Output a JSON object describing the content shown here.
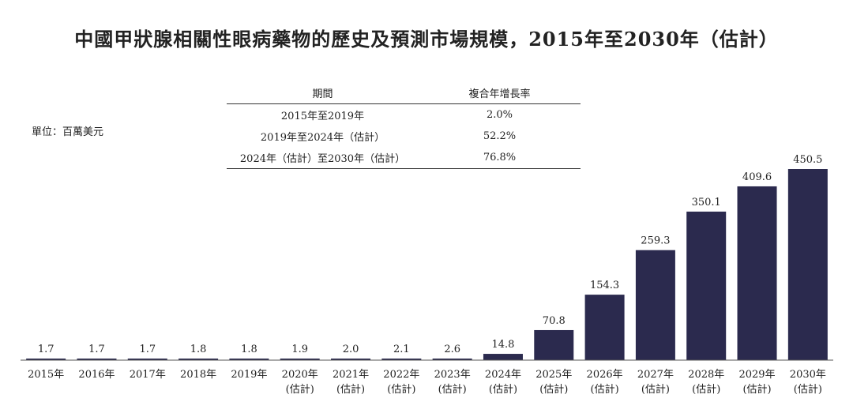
{
  "title": "中國甲狀腺相關性眼病藥物的歷史及預測市場規模，2015年至2030年（估計）",
  "unit": "單位：百萬美元",
  "cagr_table": {
    "headers": [
      "期間",
      "複合年增長率"
    ],
    "rows": [
      [
        "2015年至2019年",
        "2.0%"
      ],
      [
        "2019年至2024年（估計）",
        "52.2%"
      ],
      [
        "2024年（估計）至2030年（估計）",
        "76.8%"
      ]
    ]
  },
  "colors": {
    "bar": "#2b2a4e",
    "axis": "#555555"
  },
  "chart_data": {
    "type": "bar",
    "categories": [
      "2015年",
      "2016年",
      "2017年",
      "2018年",
      "2019年",
      "2020年",
      "2021年",
      "2022年",
      "2023年",
      "2024年",
      "2025年",
      "2026年",
      "2027年",
      "2028年",
      "2029年",
      "2030年"
    ],
    "category_sublabels": [
      "",
      "",
      "",
      "",
      "",
      "(估計)",
      "(估計)",
      "(估計)",
      "(估計)",
      "(估計)",
      "(估計)",
      "(估計)",
      "(估計)",
      "(估計)",
      "(估計)",
      "(估計)"
    ],
    "values": [
      1.7,
      1.7,
      1.7,
      1.8,
      1.8,
      1.9,
      2.0,
      2.1,
      2.6,
      14.8,
      70.8,
      154.3,
      259.3,
      350.1,
      409.6,
      450.5
    ],
    "value_labels": [
      "1.7",
      "1.7",
      "1.7",
      "1.8",
      "1.8",
      "1.9",
      "2.0",
      "2.1",
      "2.6",
      "14.8",
      "70.8",
      "154.3",
      "259.3",
      "350.1",
      "409.6",
      "450.5"
    ],
    "ylim": [
      0,
      450.5
    ],
    "grid": false,
    "legend": "none"
  }
}
